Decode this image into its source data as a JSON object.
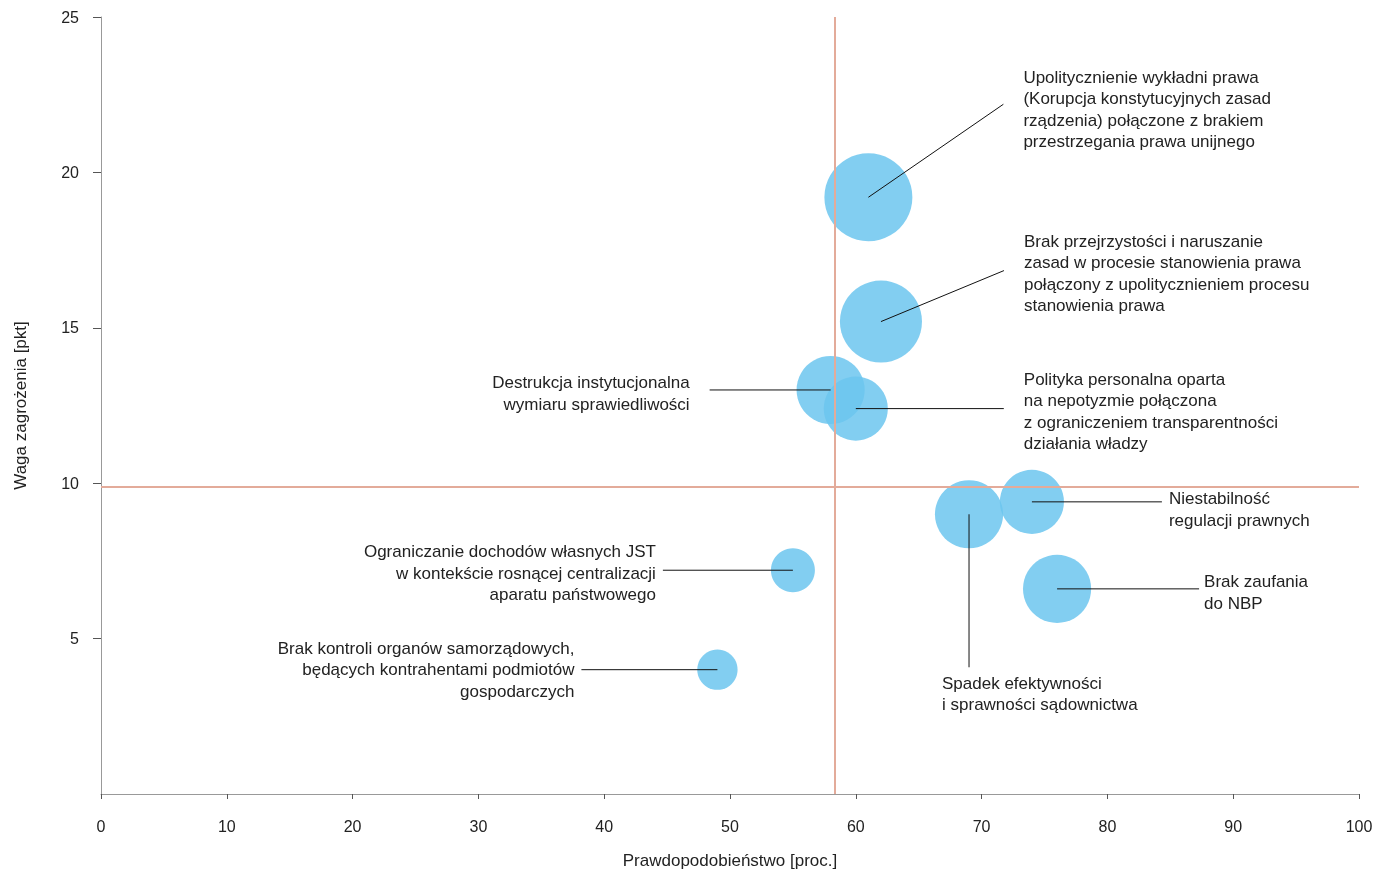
{
  "chart_data": {
    "type": "bubble",
    "xlabel": "Prawdopodobieństwo [proc.]",
    "ylabel": "Waga zagrożenia [pkt]",
    "x": [
      61,
      62,
      58,
      60,
      69,
      74,
      76,
      55,
      49
    ],
    "series": [
      {
        "color": "#6cc5ee",
        "values": [
          19.2,
          15.2,
          13.0,
          12.4,
          9.0,
          9.4,
          6.6,
          7.2,
          4.0
        ],
        "sizes": [
          1,
          0.87,
          0.6,
          0.53,
          0.6,
          0.53,
          0.6,
          0.25,
          0.21
        ]
      }
    ],
    "xlim": [
      0,
      100
    ],
    "xticks": [
      0,
      10,
      20,
      30,
      40,
      50,
      60,
      70,
      80,
      90,
      100
    ],
    "ylim": [
      0,
      25
    ],
    "yticks": [
      5,
      10,
      15,
      20,
      25
    ],
    "grid": false,
    "marker": "circle",
    "ref_lines": [
      {
        "axis": "x",
        "value": 58.3,
        "color": "#e3ab9a"
      },
      {
        "axis": "y",
        "value": 9.9,
        "color": "#e3ab9a"
      }
    ],
    "annotations": [
      {
        "text": "Upolitycznienie wykładni prawa\n(Korupcja konstytucyjnych zasad\nrządzenia) połączone z brakiem\nprzestrzegania prawa unijnego",
        "x": 61,
        "y": 19.2
      },
      {
        "text": "Brak przejrzystości i naruszanie\nzasad w procesie stanowienia prawa\npołączony z upolitycznieniem procesu\nstanowienia prawa",
        "x": 62,
        "y": 15.2
      },
      {
        "text": "Destrukcja instytucjonalna\nwymiaru sprawiedliwości",
        "x": 58,
        "y": 13.0
      },
      {
        "text": "Polityka personalna oparta\nna nepotyzmie połączona\nz ograniczeniem transparentności\ndziałania władzy",
        "x": 60,
        "y": 12.4
      },
      {
        "text": "Spadek efektywności\ni sprawności sądownictwa",
        "x": 69,
        "y": 9.0
      },
      {
        "text": "Niestabilność\nregulacji prawnych",
        "x": 74,
        "y": 9.4
      },
      {
        "text": "Brak zaufania\ndo NBP",
        "x": 76,
        "y": 6.6
      },
      {
        "text": "Ograniczanie dochodów własnych JST\nw kontekście rosnącej centralizacji\naparatu państwowego",
        "x": 55,
        "y": 7.2
      },
      {
        "text": "Brak kontroli organów samorządowych,\nbędących kontrahentami podmiotów\ngospodarczych",
        "x": 49,
        "y": 4.0
      }
    ]
  }
}
